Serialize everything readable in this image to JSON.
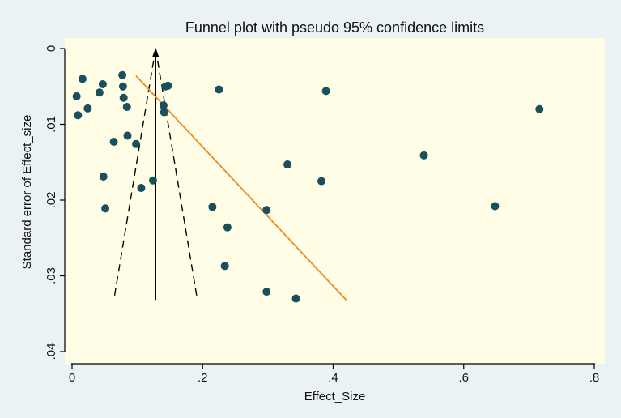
{
  "chart_data": {
    "type": "scatter",
    "title": "Funnel plot with pseudo 95% confidence limits",
    "xlabel": "Effect_Size",
    "ylabel": "Standard error of Effect_size",
    "xlim": [
      0,
      0.8
    ],
    "ylim": [
      0,
      0.04
    ],
    "y_reversed": true,
    "x_ticks": [
      {
        "value": 0,
        "label": "0"
      },
      {
        "value": 0.2,
        "label": ".2"
      },
      {
        "value": 0.4,
        "label": ".4"
      },
      {
        "value": 0.6,
        "label": ".6"
      },
      {
        "value": 0.8,
        "label": ".8"
      }
    ],
    "y_ticks": [
      {
        "value": 0,
        "label": "0"
      },
      {
        "value": 0.01,
        "label": ".01"
      },
      {
        "value": 0.02,
        "label": ".02"
      },
      {
        "value": 0.03,
        "label": ".03"
      },
      {
        "value": 0.04,
        "label": ".04"
      }
    ],
    "grid": false,
    "colors": {
      "background": "#eaf2f3",
      "plot_area": "#fffde6",
      "points": "#1a4f5e",
      "regression_line": "#f08a1e",
      "funnel": "#000000"
    },
    "points": [
      {
        "x": 0.007,
        "y": 0.0063
      },
      {
        "x": 0.009,
        "y": 0.0088
      },
      {
        "x": 0.016,
        "y": 0.004
      },
      {
        "x": 0.024,
        "y": 0.0079
      },
      {
        "x": 0.042,
        "y": 0.0058
      },
      {
        "x": 0.047,
        "y": 0.0047
      },
      {
        "x": 0.048,
        "y": 0.0169
      },
      {
        "x": 0.051,
        "y": 0.0211
      },
      {
        "x": 0.064,
        "y": 0.0123
      },
      {
        "x": 0.077,
        "y": 0.0035
      },
      {
        "x": 0.078,
        "y": 0.005
      },
      {
        "x": 0.079,
        "y": 0.0065
      },
      {
        "x": 0.084,
        "y": 0.0077
      },
      {
        "x": 0.085,
        "y": 0.0115
      },
      {
        "x": 0.098,
        "y": 0.0126
      },
      {
        "x": 0.106,
        "y": 0.0184
      },
      {
        "x": 0.124,
        "y": 0.0174
      },
      {
        "x": 0.14,
        "y": 0.0075
      },
      {
        "x": 0.141,
        "y": 0.0084
      },
      {
        "x": 0.143,
        "y": 0.005
      },
      {
        "x": 0.147,
        "y": 0.0049
      },
      {
        "x": 0.215,
        "y": 0.0209
      },
      {
        "x": 0.225,
        "y": 0.0054
      },
      {
        "x": 0.234,
        "y": 0.0287
      },
      {
        "x": 0.238,
        "y": 0.0236
      },
      {
        "x": 0.298,
        "y": 0.0321
      },
      {
        "x": 0.298,
        "y": 0.0213
      },
      {
        "x": 0.33,
        "y": 0.0153
      },
      {
        "x": 0.343,
        "y": 0.033
      },
      {
        "x": 0.382,
        "y": 0.0175
      },
      {
        "x": 0.389,
        "y": 0.0056
      },
      {
        "x": 0.539,
        "y": 0.0141
      },
      {
        "x": 0.648,
        "y": 0.0208
      },
      {
        "x": 0.716,
        "y": 0.008
      }
    ],
    "pooled_estimate": {
      "x": 0.128,
      "y_from": 0.0,
      "y_to": 0.0332
    },
    "funnel_limits": {
      "left": [
        {
          "x": 0.128,
          "y": 0.0
        },
        {
          "x": 0.064,
          "y": 0.0332
        }
      ],
      "right": [
        {
          "x": 0.128,
          "y": 0.0
        },
        {
          "x": 0.192,
          "y": 0.0332
        }
      ]
    },
    "regression_line": [
      {
        "x": 0.098,
        "y": 0.0036
      },
      {
        "x": 0.42,
        "y": 0.0332
      }
    ]
  }
}
